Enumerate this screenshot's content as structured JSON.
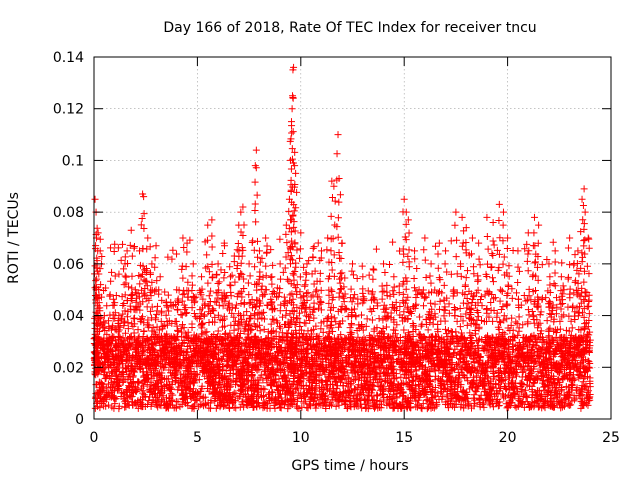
{
  "chart_data": {
    "type": "scatter",
    "title": "Day 166 of 2018, Rate Of TEC Index for receiver tncu",
    "xlabel": "GPS time / hours",
    "ylabel": "ROTI / TECUs",
    "xlim": [
      0,
      25
    ],
    "ylim": [
      0,
      0.14
    ],
    "xticks": [
      0,
      5,
      10,
      15,
      20,
      25
    ],
    "yticks": [
      0,
      0.02,
      0.04,
      0.06,
      0.08,
      0.1,
      0.12,
      0.14
    ],
    "xtick_labels": [
      "0",
      "5",
      "10",
      "15",
      "20",
      "25"
    ],
    "ytick_labels": [
      "0",
      "0.02",
      "0.04",
      "0.06",
      "0.08",
      "0.1",
      "0.12",
      "0.14"
    ],
    "grid": true,
    "marker": "+",
    "color": "#ff0000",
    "series": [
      {
        "name": "ROTI",
        "points": [
          [
            0.05,
            0.085
          ],
          [
            0.1,
            0.08
          ],
          [
            0.12,
            0.07
          ],
          [
            0.2,
            0.072
          ],
          [
            0.15,
            0.06
          ],
          [
            0.3,
            0.065
          ],
          [
            0.1,
            0.05
          ],
          [
            0.25,
            0.045
          ],
          [
            0.05,
            0.035
          ],
          [
            0.5,
            0.04
          ],
          [
            0.7,
            0.038
          ],
          [
            1.0,
            0.045
          ],
          [
            1.2,
            0.04
          ],
          [
            1.5,
            0.06
          ],
          [
            1.6,
            0.065
          ],
          [
            1.8,
            0.073
          ],
          [
            2.0,
            0.05
          ],
          [
            2.2,
            0.065
          ],
          [
            2.35,
            0.087
          ],
          [
            2.4,
            0.086
          ],
          [
            2.6,
            0.07
          ],
          [
            2.8,
            0.06
          ],
          [
            3.0,
            0.067
          ],
          [
            3.2,
            0.055
          ],
          [
            3.5,
            0.045
          ],
          [
            4.0,
            0.05
          ],
          [
            4.3,
            0.07
          ],
          [
            4.5,
            0.068
          ],
          [
            4.8,
            0.06
          ],
          [
            5.2,
            0.055
          ],
          [
            5.5,
            0.075
          ],
          [
            5.7,
            0.077
          ],
          [
            6.0,
            0.06
          ],
          [
            6.3,
            0.068
          ],
          [
            6.6,
            0.055
          ],
          [
            7.0,
            0.075
          ],
          [
            7.1,
            0.08
          ],
          [
            7.2,
            0.082
          ],
          [
            7.5,
            0.06
          ],
          [
            7.8,
            0.098
          ],
          [
            7.85,
            0.104
          ],
          [
            8.0,
            0.065
          ],
          [
            8.3,
            0.07
          ],
          [
            8.6,
            0.055
          ],
          [
            9.0,
            0.06
          ],
          [
            9.3,
            0.075
          ],
          [
            9.45,
            0.085
          ],
          [
            9.5,
            0.1
          ],
          [
            9.55,
            0.115
          ],
          [
            9.58,
            0.12
          ],
          [
            9.6,
            0.125
          ],
          [
            9.62,
            0.135
          ],
          [
            9.65,
            0.136
          ],
          [
            9.7,
            0.098
          ],
          [
            9.75,
            0.095
          ],
          [
            10.0,
            0.072
          ],
          [
            10.3,
            0.06
          ],
          [
            10.6,
            0.066
          ],
          [
            11.0,
            0.065
          ],
          [
            11.3,
            0.07
          ],
          [
            11.5,
            0.092
          ],
          [
            11.6,
            0.09
          ],
          [
            11.8,
            0.11
          ],
          [
            11.85,
            0.093
          ],
          [
            12.0,
            0.068
          ],
          [
            12.5,
            0.06
          ],
          [
            13.0,
            0.055
          ],
          [
            13.5,
            0.058
          ],
          [
            14.0,
            0.06
          ],
          [
            14.5,
            0.055
          ],
          [
            15.0,
            0.085
          ],
          [
            15.1,
            0.08
          ],
          [
            15.2,
            0.077
          ],
          [
            15.5,
            0.065
          ],
          [
            16.0,
            0.07
          ],
          [
            16.3,
            0.06
          ],
          [
            16.7,
            0.068
          ],
          [
            17.0,
            0.065
          ],
          [
            17.5,
            0.08
          ],
          [
            17.8,
            0.078
          ],
          [
            18.0,
            0.074
          ],
          [
            18.3,
            0.07
          ],
          [
            18.6,
            0.068
          ],
          [
            19.0,
            0.078
          ],
          [
            19.3,
            0.076
          ],
          [
            19.6,
            0.083
          ],
          [
            19.8,
            0.08
          ],
          [
            20.0,
            0.07
          ],
          [
            20.5,
            0.065
          ],
          [
            21.0,
            0.072
          ],
          [
            21.3,
            0.078
          ],
          [
            21.5,
            0.075
          ],
          [
            22.0,
            0.06
          ],
          [
            22.3,
            0.065
          ],
          [
            22.6,
            0.055
          ],
          [
            23.0,
            0.07
          ],
          [
            23.4,
            0.065
          ],
          [
            23.6,
            0.085
          ],
          [
            23.7,
            0.089
          ],
          [
            23.75,
            0.08
          ],
          [
            23.9,
            0.07
          ]
        ]
      }
    ]
  }
}
